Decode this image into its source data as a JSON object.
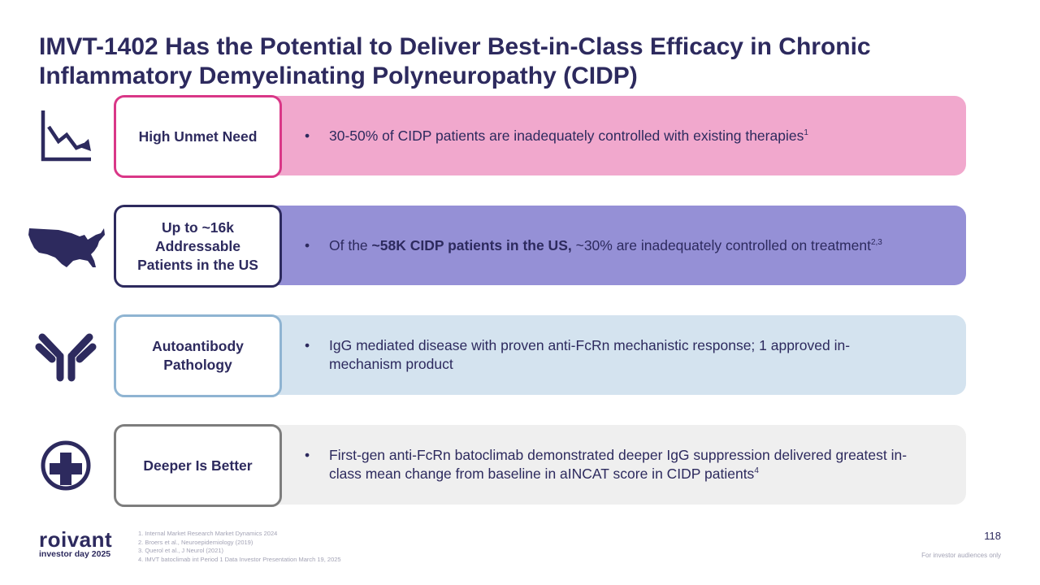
{
  "title": "IMVT-1402 Has the Potential to Deliver Best-in-Class Efficacy in Chronic Inflammatory Demyelinating Polyneuropathy (CIDP)",
  "rows": [
    {
      "label": "High Unmet Need",
      "icon": "declining-chart-icon",
      "bar_color": "#f1a8cd",
      "border_color": "#d93787",
      "text_plain": "30-50% of CIDP patients are inadequately controlled with existing therapies",
      "text_sup": "1"
    },
    {
      "label": "Up to ~16k Addressable Patients in the US",
      "icon": "us-map-icon",
      "bar_color": "#9590d6",
      "border_color": "#2d2a5e",
      "text_pre": "Of the ",
      "text_bold": "~58K CIDP patients in the US,",
      "text_post": " ~30% are inadequately controlled on treatment",
      "text_sup": "2,3"
    },
    {
      "label": "Autoantibody Pathology",
      "icon": "antibody-icon",
      "bar_color": "#d4e3ef",
      "border_color": "#8fb4d2",
      "text_plain": "IgG mediated disease with proven anti-FcRn mechanistic response; 1 approved in-mechanism product"
    },
    {
      "label": "Deeper Is Better",
      "icon": "medical-cross-icon",
      "bar_color": "#efefef",
      "border_color": "#7d7d7d",
      "text_plain": "First-gen anti-FcRn batoclimab demonstrated deeper IgG suppression delivered greatest in-class mean change from baseline in aINCAT score in CIDP patients",
      "text_sup": "4"
    }
  ],
  "bullet_char": "•",
  "footnotes": [
    "1. Internal Market Research Market Dynamics 2024",
    "2. Broers et al., Neuroepidemiology (2019)",
    "3. Querol et al., J Neurol (2021)",
    "4. IMVT batoclimab int Period 1 Data Investor Presentation March 19, 2025"
  ],
  "logo": {
    "word": "roivant",
    "subtitle": "investor day 2025"
  },
  "page_number": "118",
  "disclaimer": "For investor audiences only",
  "colors": {
    "navy": "#2d2a5e"
  }
}
